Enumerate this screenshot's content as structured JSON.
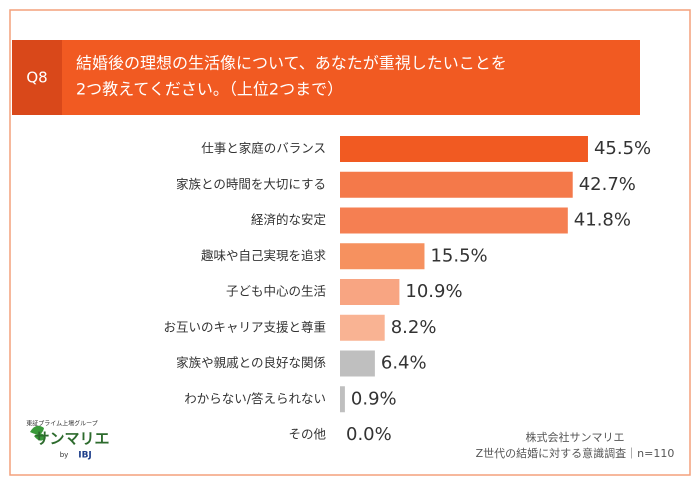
{
  "chart_data": {
    "type": "hbar",
    "question": "Q8",
    "title": [
      "結婚後の理想の生活像について、あなたが重視したいことを",
      "2つ教えてください。（上位2つまで）"
    ],
    "categories": [
      "仕事と家庭のバランス",
      "家族との時間を大切にする",
      "経済的な安定",
      "趣味や自己実現を追求",
      "子ども中心の生活",
      "お互いのキャリア支援と尊重",
      "家族や親戚との良好な関係",
      "わからない/答えられない",
      "その他"
    ],
    "values": [
      45.5,
      42.7,
      41.8,
      15.5,
      10.9,
      8.2,
      6.4,
      0.9,
      0.0
    ],
    "value_labels": [
      "45.5%",
      "42.7%",
      "41.8%",
      "15.5%",
      "10.9%",
      "8.2%",
      "6.4%",
      "0.9%",
      "0.0%"
    ],
    "colors": [
      "#f15a22",
      "#f4794a",
      "#f57f52",
      "#f6915f",
      "#f8a582",
      "#f9b393",
      "#bfbfbf",
      "#bfbfbf",
      "#bfbfbf"
    ],
    "source": [
      "株式会社サンマリエ",
      "Z世代の結婚に対する意識調査｜n=110"
    ]
  },
  "logo": {
    "group": "東証プライム上場グループ",
    "name": "サンマリエ",
    "by": "by",
    "brand": "IBJ"
  }
}
